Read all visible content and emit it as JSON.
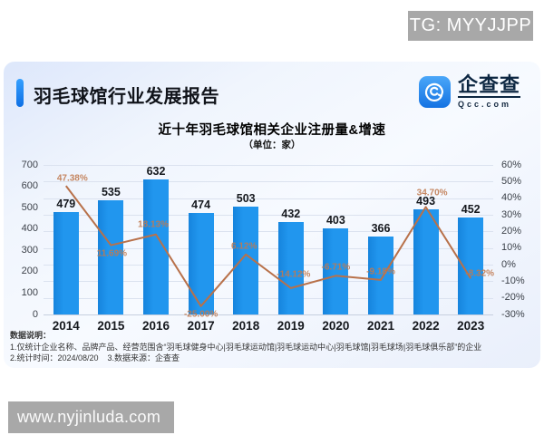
{
  "page": {
    "tg_badge": "TG: MYYJJPP",
    "watermark_url": "www.nyjinluda.com",
    "badge_bg": "#a8a8a8"
  },
  "header": {
    "report_title": "羽毛球馆行业发展报告",
    "accent_color": "#1179ec",
    "logo": {
      "brand": "企查查",
      "domain": "Qcc.com",
      "color": "#2b8df0"
    }
  },
  "chart_data": {
    "type": "bar",
    "combo": "bar+line",
    "title": "近十年羽毛球馆相关企业注册量&增速",
    "subtitle": "（单位：家）",
    "categories": [
      "2014",
      "2015",
      "2016",
      "2017",
      "2018",
      "2019",
      "2020",
      "2021",
      "2022",
      "2023"
    ],
    "series": [
      {
        "name": "注册量（家）",
        "type": "bar",
        "axis": "left",
        "color": "#1e90ea",
        "values": [
          479,
          535,
          632,
          474,
          503,
          432,
          403,
          366,
          493,
          452
        ]
      },
      {
        "name": "增速",
        "type": "line",
        "axis": "right",
        "color": "#b8714a",
        "label_color": "#c07a50",
        "values": [
          47.38,
          11.69,
          18.13,
          -25.0,
          6.12,
          -14.12,
          -6.71,
          -9.18,
          34.7,
          -8.32
        ],
        "labels": [
          "47.38%",
          "11.69%",
          "18.13%",
          "-25.00%",
          "6.12%",
          "-14.12%",
          "-6.71%",
          "-9.18%",
          "34.70%",
          "-8.32%"
        ]
      }
    ],
    "left_axis": {
      "min": 0,
      "max": 700,
      "ticks": [
        700,
        600,
        500,
        400,
        300,
        200,
        100,
        0
      ]
    },
    "right_axis": {
      "min": -30,
      "max": 60,
      "ticks": [
        "60%",
        "50%",
        "40%",
        "30%",
        "20%",
        "10%",
        "0%",
        "-10%",
        "-20%",
        "-30%"
      ]
    },
    "grid": true,
    "legend": "none"
  },
  "footnotes": {
    "heading": "数据说明：",
    "line1": "1.仅统计企业名称、品牌产品、经营范围含“羽毛球健身中心|羽毛球运动馆|羽毛球运动中心|羽毛球馆|羽毛球场|羽毛球俱乐部”的企业",
    "line2": "2.统计时间：2024/08/20    3.数据来源：企查查"
  }
}
